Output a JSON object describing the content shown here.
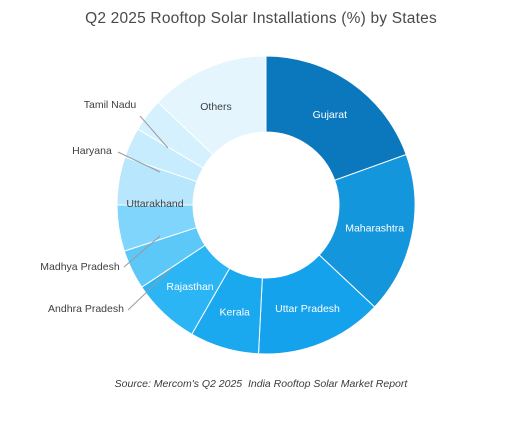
{
  "chart_data": {
    "type": "donut",
    "title": "Q2 2025 Rooftop Solar Installations (%) by States",
    "source": "Source: Mercom's Q2 2025  India Rooftop Solar Market Report",
    "start_angle_deg": 0,
    "direction": "clockwise",
    "data_labels": "category names (inside or leader lines)",
    "series": [
      {
        "name": "Gujarat",
        "value": 19.5,
        "color": "#0b78bd",
        "label_color": "#ffffff"
      },
      {
        "name": "Maharashtra",
        "value": 17.5,
        "color": "#1496dc",
        "label_color": "#ffffff"
      },
      {
        "name": "Uttar Pradesh",
        "value": 13.8,
        "color": "#14a2ec",
        "label_color": "#ffffff"
      },
      {
        "name": "Kerala",
        "value": 7.5,
        "color": "#1aa8ef",
        "label_color": "#ffffff"
      },
      {
        "name": "Rajasthan",
        "value": 7.4,
        "color": "#2bb5f5",
        "label_color": "#ffffff"
      },
      {
        "name": "Andhra Pradesh",
        "value": 4.3,
        "color": "#5cc8f8",
        "label_color": "#404040"
      },
      {
        "name": "Madhya Pradesh",
        "value": 5.0,
        "color": "#7fd5fb",
        "label_color": "#404040"
      },
      {
        "name": "Uttarakhand",
        "value": 5.2,
        "color": "#b7e6fd",
        "label_color": "#404040"
      },
      {
        "name": "Haryana",
        "value": 3.3,
        "color": "#c7ecfd",
        "label_color": "#404040"
      },
      {
        "name": "Tamil Nadu",
        "value": 3.6,
        "color": "#d6f1fe",
        "label_color": "#404040"
      },
      {
        "name": "Others",
        "value": 12.9,
        "color": "#e4f5fe",
        "label_color": "#404040"
      }
    ]
  }
}
